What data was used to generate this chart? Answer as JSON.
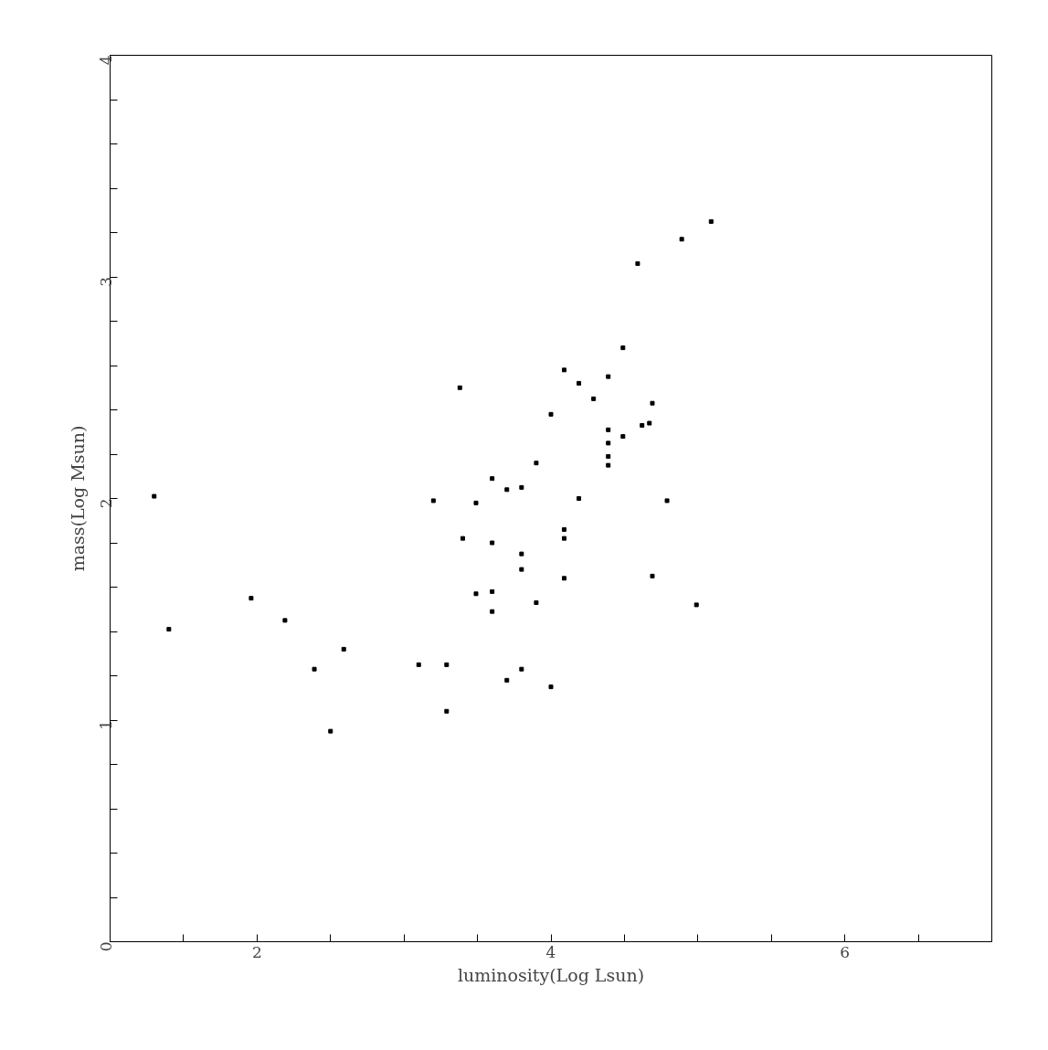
{
  "chart_data": {
    "type": "scatter",
    "xlabel": "luminosity(Log Lsun)",
    "ylabel": "mass(Log Msun)",
    "x": [
      1.3,
      1.4,
      1.96,
      2.19,
      2.39,
      2.5,
      2.59,
      3.1,
      3.2,
      3.29,
      3.29,
      3.38,
      3.4,
      3.49,
      3.49,
      3.6,
      3.6,
      3.6,
      3.6,
      3.7,
      3.7,
      3.8,
      3.8,
      3.8,
      3.8,
      3.9,
      3.9,
      4.0,
      4.0,
      4.09,
      4.09,
      4.09,
      4.09,
      4.19,
      4.19,
      4.29,
      4.39,
      4.39,
      4.39,
      4.39,
      4.39,
      4.49,
      4.49,
      4.59,
      4.62,
      4.67,
      4.69,
      4.69,
      4.79,
      4.89,
      4.99,
      5.09
    ],
    "series": [
      {
        "color": "#000000",
        "values": [
          2.01,
          1.41,
          1.55,
          1.45,
          1.23,
          0.95,
          1.32,
          1.25,
          1.99,
          1.25,
          1.04,
          2.5,
          1.82,
          1.98,
          1.57,
          2.09,
          1.8,
          1.58,
          1.49,
          2.04,
          1.18,
          2.05,
          1.75,
          1.68,
          1.23,
          2.16,
          1.53,
          2.38,
          1.15,
          2.58,
          1.86,
          1.82,
          1.64,
          2.52,
          2.0,
          2.45,
          2.55,
          2.31,
          2.25,
          2.19,
          2.15,
          2.68,
          2.28,
          3.06,
          2.33,
          2.34,
          2.43,
          1.65,
          1.99,
          3.17,
          1.52,
          3.25
        ]
      }
    ],
    "marker": "square",
    "grid": false,
    "xlim": [
      1,
      7
    ],
    "ylim": [
      0,
      4
    ],
    "xticks": [
      {
        "value": 1.5,
        "label": null
      },
      2,
      {
        "value": 2.5,
        "label": null
      },
      {
        "value": 3,
        "label": null
      },
      {
        "value": 3.5,
        "label": null
      },
      4,
      {
        "value": 4.5,
        "label": null
      },
      {
        "value": 5,
        "label": null
      },
      {
        "value": 5.5,
        "label": null
      },
      6,
      {
        "value": 6.5,
        "label": null
      }
    ],
    "yticks": [
      0,
      {
        "value": 0.2,
        "label": null
      },
      {
        "value": 0.4,
        "label": null
      },
      {
        "value": 0.6,
        "label": null
      },
      {
        "value": 0.8,
        "label": null
      },
      1,
      {
        "value": 1.2,
        "label": null
      },
      {
        "value": 1.4,
        "label": null
      },
      {
        "value": 1.6,
        "label": null
      },
      {
        "value": 1.8,
        "label": null
      },
      2,
      {
        "value": 2.2,
        "label": null
      },
      {
        "value": 2.4,
        "label": null
      },
      {
        "value": 2.6,
        "label": null
      },
      {
        "value": 2.8,
        "label": null
      },
      3,
      {
        "value": 3.2,
        "label": null
      },
      {
        "value": 3.4,
        "label": null
      },
      {
        "value": 3.6,
        "label": null
      },
      {
        "value": 3.8,
        "label": null
      },
      4
    ]
  }
}
